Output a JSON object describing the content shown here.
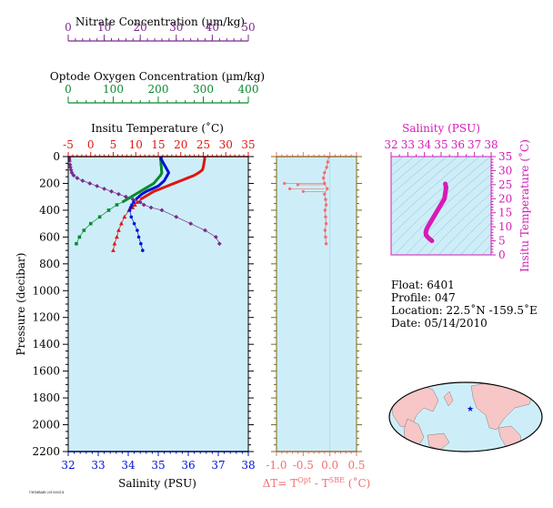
{
  "colors": {
    "nitrate": "#7b2a8c",
    "oxygen": "#0a8a2e",
    "temperature": "#e0150f",
    "salinity": "#0012d6",
    "delta": "#f07070",
    "salinity_ts": "#d51bb7",
    "panel_bg": "#cdeef8",
    "land": "#f7c6c6",
    "ocean": "#cdeef8"
  },
  "float_info": {
    "float_line": "Float:  6401",
    "profile_line": "Profile:  047",
    "location_line": "Location:  22.5˚N  -159.5˚E",
    "date_line": "Date:  05/14/2010"
  },
  "footer_stamp": "UW/MBARI 2010/05/14",
  "chart_data": [
    {
      "type": "line",
      "name": "main_profile",
      "ylabel": "Pressure (decibar)",
      "ylim": [
        2200,
        0
      ],
      "y_ticks": [
        0,
        200,
        400,
        600,
        800,
        1000,
        1200,
        1400,
        1600,
        1800,
        2000,
        2200
      ],
      "axes": {
        "nitrate": {
          "label": "Nitrate Concentration (µm/kg)",
          "range": [
            0,
            50
          ],
          "ticks": [
            0,
            10,
            20,
            30,
            40,
            50
          ]
        },
        "oxygen": {
          "label": "Optode Oxygen Concentration (µm/kg)",
          "range": [
            0,
            400
          ],
          "ticks": [
            0,
            100,
            200,
            300,
            400
          ]
        },
        "temperature": {
          "label": "Insitu Temperature (˚C)",
          "range": [
            -5,
            35
          ],
          "ticks": [
            -5,
            0,
            5,
            10,
            15,
            20,
            25,
            30,
            35
          ]
        },
        "salinity": {
          "label": "Salinity (PSU)",
          "range": [
            32,
            38
          ],
          "ticks": [
            32,
            33,
            34,
            35,
            36,
            37,
            38
          ]
        }
      },
      "series": [
        {
          "axis": "nitrate",
          "dense_to": 40,
          "points": [
            [
              0.4,
              0
            ],
            [
              0.4,
              20
            ],
            [
              0.5,
              40
            ],
            [
              0.5,
              60
            ],
            [
              0.6,
              80
            ],
            [
              0.8,
              100
            ],
            [
              1,
              120
            ],
            [
              1.5,
              140
            ],
            [
              2.5,
              160
            ],
            [
              4,
              180
            ],
            [
              6,
              200
            ],
            [
              8,
              220
            ],
            [
              10,
              240
            ],
            [
              12,
              260
            ],
            [
              14,
              280
            ],
            [
              16,
              300
            ],
            [
              18,
              320
            ],
            [
              20,
              340
            ],
            [
              21,
              360
            ],
            [
              23,
              380
            ],
            [
              26,
              400
            ],
            [
              30,
              450
            ],
            [
              34,
              500
            ],
            [
              38,
              550
            ],
            [
              41,
              600
            ],
            [
              42,
              650
            ]
          ]
        },
        {
          "axis": "oxygen",
          "dense_to": 340,
          "points": [
            [
              205,
              0
            ],
            [
              205,
              20
            ],
            [
              206,
              40
            ],
            [
              206,
              60
            ],
            [
              207,
              80
            ],
            [
              207,
              100
            ],
            [
              208,
              120
            ],
            [
              205,
              140
            ],
            [
              200,
              160
            ],
            [
              195,
              180
            ],
            [
              190,
              200
            ],
            [
              180,
              220
            ],
            [
              170,
              240
            ],
            [
              160,
              260
            ],
            [
              150,
              280
            ],
            [
              140,
              300
            ],
            [
              130,
              320
            ],
            [
              120,
              340
            ],
            [
              108,
              360
            ],
            [
              90,
              400
            ],
            [
              70,
              450
            ],
            [
              50,
              500
            ],
            [
              35,
              550
            ],
            [
              25,
              600
            ],
            [
              18,
              650
            ]
          ]
        },
        {
          "axis": "temperature",
          "dense_to": 320,
          "points": [
            [
              25.3,
              0
            ],
            [
              25.3,
              20
            ],
            [
              25.2,
              40
            ],
            [
              25.1,
              60
            ],
            [
              25,
              80
            ],
            [
              24.8,
              100
            ],
            [
              24,
              120
            ],
            [
              23,
              140
            ],
            [
              21.5,
              160
            ],
            [
              20,
              180
            ],
            [
              18.5,
              200
            ],
            [
              17,
              220
            ],
            [
              15.5,
              240
            ],
            [
              14,
              260
            ],
            [
              13,
              280
            ],
            [
              12,
              300
            ],
            [
              11,
              320
            ],
            [
              10.3,
              340
            ],
            [
              9.8,
              360
            ],
            [
              9.3,
              380
            ],
            [
              8.5,
              400
            ],
            [
              7.5,
              450
            ],
            [
              6.8,
              500
            ],
            [
              6.2,
              550
            ],
            [
              5.8,
              600
            ],
            [
              5.3,
              650
            ],
            [
              5,
              700
            ]
          ]
        },
        {
          "axis": "salinity",
          "dense_to": 320,
          "points": [
            [
              35.1,
              0
            ],
            [
              35.1,
              20
            ],
            [
              35.15,
              40
            ],
            [
              35.2,
              60
            ],
            [
              35.25,
              80
            ],
            [
              35.3,
              100
            ],
            [
              35.35,
              120
            ],
            [
              35.3,
              140
            ],
            [
              35.25,
              160
            ],
            [
              35.2,
              180
            ],
            [
              35.1,
              200
            ],
            [
              35,
              220
            ],
            [
              34.8,
              240
            ],
            [
              34.6,
              260
            ],
            [
              34.45,
              280
            ],
            [
              34.35,
              300
            ],
            [
              34.25,
              320
            ],
            [
              34.18,
              340
            ],
            [
              34.12,
              360
            ],
            [
              34.08,
              380
            ],
            [
              34.05,
              400
            ],
            [
              34.1,
              450
            ],
            [
              34.2,
              500
            ],
            [
              34.3,
              550
            ],
            [
              34.35,
              600
            ],
            [
              34.42,
              650
            ],
            [
              34.48,
              700
            ]
          ]
        }
      ]
    },
    {
      "type": "line",
      "name": "delta_t",
      "xlabel": "ΔT= T",
      "xlabel_sup1": "Opt",
      "xlabel_mid": " - T",
      "xlabel_sup2": "SBE",
      "xlabel_tail": " (˚C)",
      "xlim": [
        -1.0,
        0.5
      ],
      "x_ticks": [
        "-1.0",
        "-0.5",
        "0.0",
        "0.5"
      ],
      "ylim": [
        2200,
        0
      ],
      "points": [
        [
          -0.02,
          0
        ],
        [
          -0.04,
          40
        ],
        [
          -0.06,
          80
        ],
        [
          -0.1,
          120
        ],
        [
          -0.12,
          160
        ],
        [
          -0.1,
          200
        ],
        [
          -0.05,
          240
        ],
        [
          -0.1,
          280
        ],
        [
          -0.08,
          320
        ],
        [
          -0.07,
          360
        ],
        [
          -0.09,
          400
        ],
        [
          -0.08,
          450
        ],
        [
          -0.07,
          500
        ],
        [
          -0.09,
          550
        ],
        [
          -0.08,
          600
        ],
        [
          -0.07,
          650
        ]
      ],
      "spike_points": [
        [
          -0.85,
          200
        ],
        [
          -0.6,
          210
        ],
        [
          -0.75,
          240
        ],
        [
          -0.5,
          260
        ]
      ]
    },
    {
      "type": "line",
      "name": "ts_diagram",
      "xlabel": "Salinity (PSU)",
      "ylabel": "Insitu Temperature (˚C)",
      "xlim": [
        32,
        38
      ],
      "ylim": [
        0,
        35
      ],
      "x_ticks": [
        32,
        33,
        34,
        35,
        36,
        37,
        38
      ],
      "y_ticks": [
        0,
        5,
        10,
        15,
        20,
        25,
        30,
        35
      ],
      "points": [
        [
          35.25,
          25.3
        ],
        [
          35.3,
          24
        ],
        [
          35.25,
          22
        ],
        [
          35.2,
          20
        ],
        [
          35,
          18
        ],
        [
          34.8,
          16
        ],
        [
          34.6,
          14
        ],
        [
          34.45,
          12.5
        ],
        [
          34.3,
          11
        ],
        [
          34.2,
          10
        ],
        [
          34.12,
          9
        ],
        [
          34.08,
          8
        ],
        [
          34.1,
          7
        ],
        [
          34.25,
          6
        ],
        [
          34.35,
          5.5
        ],
        [
          34.45,
          5
        ]
      ]
    }
  ]
}
